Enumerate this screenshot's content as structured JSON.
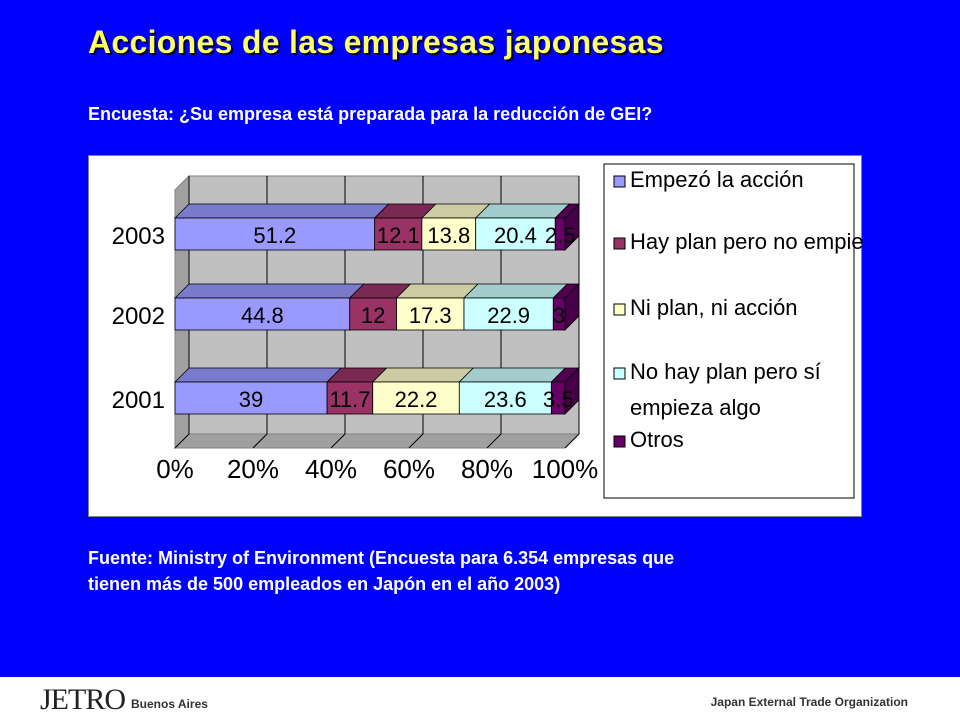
{
  "slide": {
    "title": "Acciones de las  empresas japonesas",
    "subtitle": "Encuesta: ¿Su empresa está preparada para la reducción de GEI?",
    "source_line1": "Fuente: Ministry of Environment (Encuesta para 6.354 empresas que",
    "source_line2": "tienen más de 500 empleados en Japón en el año 2003)"
  },
  "footer": {
    "logo": "JETRO",
    "logo_sub": "Buenos Aires",
    "organization": "Japan External Trade Organization"
  },
  "chart_data": {
    "type": "bar",
    "orientation": "horizontal",
    "stacked": "percent",
    "categories": [
      "2003",
      "2002",
      "2001"
    ],
    "series": [
      {
        "name": "Empezó la acción",
        "values": [
          51.2,
          44.8,
          39
        ],
        "labels": [
          "51.2",
          "44.8",
          "39"
        ],
        "color": "#9999ff"
      },
      {
        "name": "Hay plan pero no empieza",
        "values": [
          12.1,
          12,
          11.7
        ],
        "labels": [
          "12.1",
          "12",
          "11.7"
        ],
        "color": "#993366"
      },
      {
        "name": "Ni plan, ni acción",
        "values": [
          13.8,
          17.3,
          22.2
        ],
        "labels": [
          "13.8",
          "17.3",
          "22.2"
        ],
        "color": "#ffffcc"
      },
      {
        "name": "No hay plan pero sí empieza algo",
        "values": [
          20.4,
          22.9,
          23.6
        ],
        "labels": [
          "20.4",
          "22.9",
          "23.6"
        ],
        "color": "#ccffff"
      },
      {
        "name": "Otros",
        "values": [
          2.5,
          3,
          3.5
        ],
        "labels": [
          "2.5",
          "3",
          "3.5"
        ],
        "color": "#660066"
      }
    ],
    "xlim": [
      0,
      100
    ],
    "xticks": [
      "0%",
      "20%",
      "40%",
      "60%",
      "80%",
      "100%"
    ],
    "legend_lines": [
      [
        "Empezó la acción"
      ],
      [
        "Hay plan pero no empieza"
      ],
      [
        "Ni plan, ni acción"
      ],
      [
        "No hay plan pero sí",
        "empieza algo"
      ],
      [
        "Otros"
      ]
    ],
    "grid": true,
    "legend_position": "right",
    "plot_background": "#c0c0c0"
  }
}
